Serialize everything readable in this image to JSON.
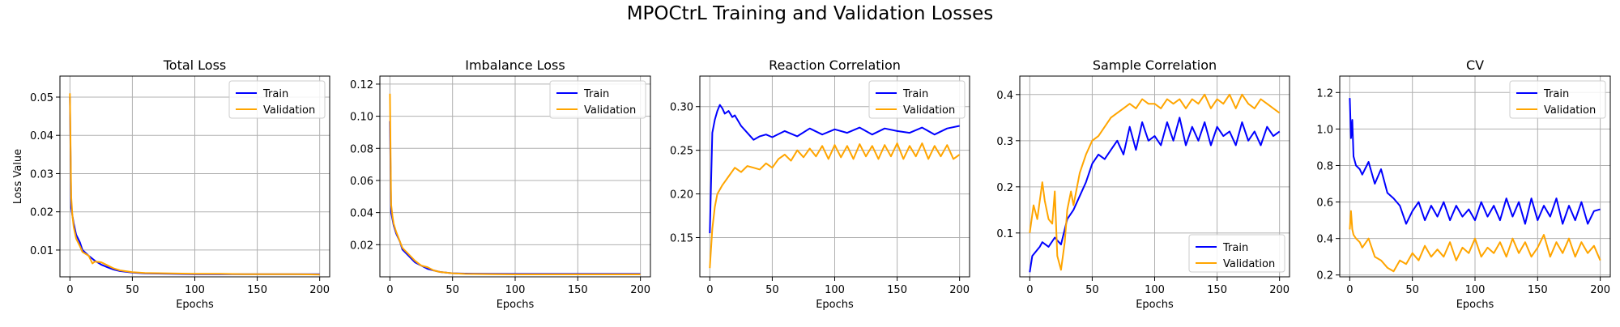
{
  "figure": {
    "title": "MPOCtrL Training and Validation Losses"
  },
  "colors": {
    "train": "#0000ff",
    "validation": "#ffa500",
    "grid": "#b0b0b0"
  },
  "chart_data": [
    {
      "type": "line",
      "title": "Total Loss",
      "xlabel": "Epochs",
      "ylabel": "Loss Value",
      "xlim": [
        -8,
        208
      ],
      "ylim": [
        0.003,
        0.0555
      ],
      "xticks": [
        0,
        50,
        100,
        150,
        200
      ],
      "yticks": [
        0.01,
        0.02,
        0.03,
        0.04,
        0.05
      ],
      "yticklabels": [
        "0.01",
        "0.02",
        "0.03",
        "0.04",
        "0.05"
      ],
      "grid": true,
      "legend": "upper right",
      "series": [
        {
          "name": "Train",
          "color": "#0000ff",
          "x": [
            0,
            1,
            2,
            3,
            5,
            8,
            10,
            15,
            20,
            25,
            30,
            35,
            40,
            50,
            60,
            80,
            100,
            120,
            140,
            160,
            180,
            200
          ],
          "y": [
            0.05,
            0.021,
            0.019,
            0.017,
            0.014,
            0.012,
            0.01,
            0.0085,
            0.0072,
            0.0062,
            0.0055,
            0.0049,
            0.0045,
            0.0041,
            0.0039,
            0.0038,
            0.0037,
            0.0037,
            0.0037,
            0.0037,
            0.0037,
            0.0037
          ]
        },
        {
          "name": "Validation",
          "color": "#ffa500",
          "x": [
            0,
            1,
            2,
            3,
            5,
            8,
            10,
            15,
            18,
            20,
            25,
            30,
            35,
            40,
            50,
            60,
            80,
            100,
            120,
            140,
            160,
            180,
            200
          ],
          "y": [
            0.051,
            0.024,
            0.019,
            0.016,
            0.013,
            0.011,
            0.0095,
            0.0085,
            0.0065,
            0.007,
            0.0068,
            0.006,
            0.0052,
            0.0047,
            0.0042,
            0.004,
            0.0039,
            0.0038,
            0.0038,
            0.0037,
            0.0037,
            0.0037,
            0.0036
          ]
        }
      ]
    },
    {
      "type": "line",
      "title": "Imbalance Loss",
      "xlabel": "Epochs",
      "ylabel": "",
      "xlim": [
        -8,
        208
      ],
      "ylim": [
        0.0,
        0.125
      ],
      "xticks": [
        0,
        50,
        100,
        150,
        200
      ],
      "yticks": [
        0.02,
        0.04,
        0.06,
        0.08,
        0.1,
        0.12
      ],
      "yticklabels": [
        "0.02",
        "0.04",
        "0.06",
        "0.08",
        "0.10",
        "0.12"
      ],
      "grid": true,
      "legend": "upper right",
      "series": [
        {
          "name": "Train",
          "color": "#0000ff",
          "x": [
            0,
            1,
            2,
            3,
            5,
            8,
            10,
            15,
            20,
            25,
            30,
            35,
            40,
            50,
            60,
            80,
            100,
            120,
            140,
            160,
            180,
            200
          ],
          "y": [
            0.097,
            0.04,
            0.036,
            0.032,
            0.027,
            0.022,
            0.017,
            0.013,
            0.009,
            0.007,
            0.005,
            0.004,
            0.003,
            0.0022,
            0.002,
            0.0019,
            0.0018,
            0.0018,
            0.0018,
            0.0018,
            0.0018,
            0.0018
          ]
        },
        {
          "name": "Validation",
          "color": "#ffa500",
          "x": [
            0,
            1,
            2,
            3,
            5,
            8,
            10,
            15,
            20,
            25,
            30,
            35,
            40,
            50,
            60,
            80,
            100,
            120,
            140,
            160,
            180,
            200
          ],
          "y": [
            0.114,
            0.045,
            0.038,
            0.033,
            0.028,
            0.022,
            0.018,
            0.014,
            0.01,
            0.007,
            0.006,
            0.004,
            0.003,
            0.0022,
            0.0018,
            0.0016,
            0.0015,
            0.0015,
            0.0015,
            0.0015,
            0.0015,
            0.0015
          ]
        }
      ]
    },
    {
      "type": "line",
      "title": "Reaction Correlation",
      "xlabel": "Epochs",
      "ylabel": "",
      "xlim": [
        -8,
        208
      ],
      "ylim": [
        0.105,
        0.335
      ],
      "xticks": [
        0,
        50,
        100,
        150,
        200
      ],
      "yticks": [
        0.15,
        0.2,
        0.25,
        0.3
      ],
      "yticklabels": [
        "0.15",
        "0.20",
        "0.25",
        "0.30"
      ],
      "grid": true,
      "legend": "upper right",
      "series": [
        {
          "name": "Train",
          "color": "#0000ff",
          "x": [
            0,
            2,
            4,
            6,
            8,
            10,
            12,
            15,
            18,
            20,
            25,
            30,
            35,
            40,
            45,
            50,
            60,
            70,
            80,
            90,
            100,
            110,
            120,
            130,
            140,
            150,
            160,
            170,
            180,
            190,
            200
          ],
          "y": [
            0.155,
            0.27,
            0.285,
            0.295,
            0.302,
            0.298,
            0.292,
            0.295,
            0.288,
            0.29,
            0.278,
            0.27,
            0.262,
            0.266,
            0.268,
            0.265,
            0.272,
            0.266,
            0.275,
            0.268,
            0.274,
            0.27,
            0.276,
            0.268,
            0.275,
            0.272,
            0.27,
            0.276,
            0.268,
            0.275,
            0.278
          ]
        },
        {
          "name": "Validation",
          "color": "#ffa500",
          "x": [
            0,
            2,
            4,
            6,
            8,
            10,
            15,
            20,
            25,
            30,
            35,
            40,
            45,
            50,
            55,
            60,
            65,
            70,
            75,
            80,
            85,
            90,
            95,
            100,
            105,
            110,
            115,
            120,
            125,
            130,
            135,
            140,
            145,
            150,
            155,
            160,
            165,
            170,
            175,
            180,
            185,
            190,
            195,
            200
          ],
          "y": [
            0.115,
            0.16,
            0.185,
            0.2,
            0.205,
            0.21,
            0.22,
            0.23,
            0.225,
            0.232,
            0.23,
            0.228,
            0.235,
            0.23,
            0.24,
            0.245,
            0.238,
            0.25,
            0.242,
            0.252,
            0.243,
            0.255,
            0.24,
            0.256,
            0.242,
            0.255,
            0.24,
            0.257,
            0.243,
            0.255,
            0.24,
            0.256,
            0.243,
            0.258,
            0.24,
            0.255,
            0.243,
            0.258,
            0.24,
            0.255,
            0.243,
            0.256,
            0.24,
            0.245
          ]
        }
      ]
    },
    {
      "type": "line",
      "title": "Sample Correlation",
      "xlabel": "Epochs",
      "ylabel": "",
      "xlim": [
        -8,
        208
      ],
      "ylim": [
        0.005,
        0.44
      ],
      "xticks": [
        0,
        50,
        100,
        150,
        200
      ],
      "yticks": [
        0.1,
        0.2,
        0.3,
        0.4
      ],
      "yticklabels": [
        "0.1",
        "0.2",
        "0.3",
        "0.4"
      ],
      "grid": true,
      "legend": "lower right",
      "series": [
        {
          "name": "Train",
          "color": "#0000ff",
          "x": [
            0,
            2,
            5,
            8,
            10,
            15,
            20,
            25,
            30,
            35,
            40,
            45,
            50,
            55,
            60,
            65,
            70,
            75,
            80,
            85,
            90,
            95,
            100,
            105,
            110,
            115,
            120,
            125,
            130,
            135,
            140,
            145,
            150,
            155,
            160,
            165,
            170,
            175,
            180,
            185,
            190,
            195,
            200
          ],
          "y": [
            0.015,
            0.05,
            0.06,
            0.07,
            0.08,
            0.07,
            0.09,
            0.075,
            0.13,
            0.15,
            0.18,
            0.21,
            0.25,
            0.27,
            0.26,
            0.28,
            0.3,
            0.27,
            0.33,
            0.28,
            0.34,
            0.3,
            0.31,
            0.29,
            0.34,
            0.3,
            0.35,
            0.29,
            0.33,
            0.3,
            0.34,
            0.29,
            0.33,
            0.31,
            0.32,
            0.29,
            0.34,
            0.3,
            0.32,
            0.29,
            0.33,
            0.31,
            0.32
          ]
        },
        {
          "name": "Validation",
          "color": "#ffa500",
          "x": [
            0,
            3,
            6,
            10,
            12,
            15,
            18,
            20,
            22,
            25,
            28,
            30,
            33,
            35,
            40,
            45,
            50,
            55,
            60,
            65,
            70,
            75,
            80,
            85,
            90,
            95,
            100,
            105,
            110,
            115,
            120,
            125,
            130,
            135,
            140,
            145,
            150,
            155,
            160,
            165,
            170,
            175,
            180,
            185,
            190,
            195,
            200
          ],
          "y": [
            0.1,
            0.16,
            0.13,
            0.21,
            0.17,
            0.13,
            0.12,
            0.19,
            0.05,
            0.02,
            0.08,
            0.15,
            0.19,
            0.16,
            0.23,
            0.27,
            0.3,
            0.31,
            0.33,
            0.35,
            0.36,
            0.37,
            0.38,
            0.37,
            0.39,
            0.38,
            0.38,
            0.37,
            0.39,
            0.38,
            0.39,
            0.37,
            0.39,
            0.38,
            0.4,
            0.37,
            0.39,
            0.38,
            0.4,
            0.37,
            0.4,
            0.38,
            0.37,
            0.39,
            0.38,
            0.37,
            0.36
          ]
        }
      ]
    },
    {
      "type": "line",
      "title": "CV",
      "xlabel": "Epochs",
      "ylabel": "",
      "xlim": [
        -8,
        208
      ],
      "ylim": [
        0.19,
        1.29
      ],
      "xticks": [
        0,
        50,
        100,
        150,
        200
      ],
      "yticks": [
        0.2,
        0.4,
        0.6,
        0.8,
        1.0,
        1.2
      ],
      "yticklabels": [
        "0.2",
        "0.4",
        "0.6",
        "0.8",
        "1.0",
        "1.2"
      ],
      "grid": true,
      "legend": "upper right",
      "series": [
        {
          "name": "Train",
          "color": "#0000ff",
          "x": [
            0,
            1,
            2,
            3,
            5,
            8,
            10,
            15,
            20,
            25,
            30,
            35,
            40,
            45,
            50,
            55,
            60,
            65,
            70,
            75,
            80,
            85,
            90,
            95,
            100,
            105,
            110,
            115,
            120,
            125,
            130,
            135,
            140,
            145,
            150,
            155,
            160,
            165,
            170,
            175,
            180,
            185,
            190,
            195,
            200
          ],
          "y": [
            1.17,
            0.95,
            1.05,
            0.85,
            0.8,
            0.78,
            0.75,
            0.82,
            0.7,
            0.78,
            0.65,
            0.62,
            0.58,
            0.48,
            0.55,
            0.6,
            0.5,
            0.58,
            0.52,
            0.6,
            0.5,
            0.58,
            0.52,
            0.56,
            0.5,
            0.6,
            0.52,
            0.58,
            0.5,
            0.62,
            0.52,
            0.6,
            0.48,
            0.62,
            0.5,
            0.58,
            0.52,
            0.62,
            0.48,
            0.58,
            0.5,
            0.6,
            0.48,
            0.55,
            0.56
          ]
        },
        {
          "name": "Validation",
          "color": "#ffa500",
          "x": [
            0,
            1,
            2,
            3,
            5,
            8,
            10,
            15,
            20,
            25,
            30,
            35,
            40,
            45,
            50,
            55,
            60,
            65,
            70,
            75,
            80,
            85,
            90,
            95,
            100,
            105,
            110,
            115,
            120,
            125,
            130,
            135,
            140,
            145,
            150,
            155,
            160,
            165,
            170,
            175,
            180,
            185,
            190,
            195,
            200
          ],
          "y": [
            0.45,
            0.55,
            0.45,
            0.42,
            0.4,
            0.38,
            0.35,
            0.4,
            0.3,
            0.28,
            0.24,
            0.22,
            0.28,
            0.26,
            0.32,
            0.28,
            0.36,
            0.3,
            0.34,
            0.3,
            0.38,
            0.28,
            0.35,
            0.32,
            0.4,
            0.3,
            0.35,
            0.32,
            0.38,
            0.3,
            0.4,
            0.32,
            0.38,
            0.3,
            0.35,
            0.42,
            0.3,
            0.38,
            0.32,
            0.4,
            0.3,
            0.38,
            0.32,
            0.36,
            0.28
          ]
        }
      ]
    }
  ]
}
